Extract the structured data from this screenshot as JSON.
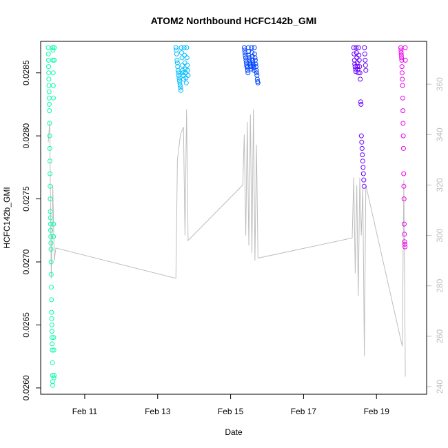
{
  "chart_data": {
    "type": "scatter",
    "title": "ATOM2 Northbound HCFC142b_GMI",
    "xlabel": "Date",
    "ylabel": "HCFC142b_GMI",
    "xlim": [
      "2017-02-09T19:00",
      "2017-02-20T09:00"
    ],
    "ylim": [
      0.02595,
      0.02875
    ],
    "y2lim": [
      237,
      377
    ],
    "x_ticks": [
      "Feb 11",
      "Feb 13",
      "Feb 15",
      "Feb 17",
      "Feb 19"
    ],
    "x_tick_dates": [
      "2017-02-11",
      "2017-02-13",
      "2017-02-15",
      "2017-02-17",
      "2017-02-19"
    ],
    "y_ticks": [
      "0.0260",
      "0.0265",
      "0.0270",
      "0.0275",
      "0.0280",
      "0.0285"
    ],
    "y_tick_values": [
      0.026,
      0.0265,
      0.027,
      0.0275,
      0.028,
      0.0285
    ],
    "y2_ticks": [
      "240",
      "260",
      "280",
      "300",
      "320",
      "340",
      "360"
    ],
    "y2_tick_values": [
      240,
      260,
      280,
      300,
      320,
      340,
      360
    ],
    "grid": false,
    "series": [
      {
        "color": "#00ffaa",
        "start": "2017-02-10T00:00",
        "end": "2017-02-10T04:00",
        "values": [
          0.0287,
          0.02865,
          0.0286,
          0.02855,
          0.0285,
          0.02845,
          0.0284,
          0.02835,
          0.0283,
          0.02825,
          0.0282,
          0.0281,
          0.028,
          0.0279,
          0.0278,
          0.0277,
          0.0276,
          0.0275,
          0.0274,
          0.02735,
          0.0273,
          0.02725,
          0.0272,
          0.02715,
          0.0271,
          0.027,
          0.0269,
          0.0268,
          0.0267,
          0.0266,
          0.02655,
          0.0265,
          0.02645,
          0.0264,
          0.02635,
          0.0263,
          0.0262,
          0.0261,
          0.02605,
          0.02602,
          0.0287,
          0.02868,
          0.0286,
          0.0285,
          0.0284,
          0.0283,
          0.0272,
          0.0273,
          0.0264,
          0.0263,
          0.02608,
          0.0261,
          0.0287,
          0.0286
        ]
      },
      {
        "color": "#00bbff",
        "start": "2017-02-13T12:00",
        "end": "2017-02-13T20:00",
        "values": [
          0.0287,
          0.02868,
          0.02865,
          0.0286,
          0.02858,
          0.02855,
          0.02852,
          0.0285,
          0.02848,
          0.02846,
          0.02844,
          0.02842,
          0.0284,
          0.02838,
          0.02836,
          0.0287,
          0.02866,
          0.02862,
          0.02856,
          0.02852,
          0.0285,
          0.02848,
          0.02845,
          0.0287,
          0.02864,
          0.02858,
          0.02853,
          0.0285,
          0.02846,
          0.02842,
          0.0287,
          0.02862,
          0.02856,
          0.02852,
          0.02848
        ]
      },
      {
        "color": "#0044ff",
        "start": "2017-02-15T09:00",
        "end": "2017-02-15T18:00",
        "values": [
          0.0287,
          0.02868,
          0.02866,
          0.02864,
          0.02862,
          0.0286,
          0.02858,
          0.02856,
          0.02855,
          0.02854,
          0.02852,
          0.0285,
          0.0287,
          0.02867,
          0.02864,
          0.02862,
          0.0286,
          0.02858,
          0.02857,
          0.02856,
          0.02855,
          0.02853,
          0.0287,
          0.02866,
          0.02863,
          0.0286,
          0.02858,
          0.02856,
          0.02854,
          0.02852,
          0.0287,
          0.02865,
          0.02862,
          0.0286,
          0.02857,
          0.02855,
          0.02852,
          0.0285,
          0.02848,
          0.02845,
          0.02843,
          0.02842
        ]
      },
      {
        "color": "#6600ff",
        "start": "2017-02-18T09:00",
        "end": "2017-02-18T17:00",
        "values": [
          0.0287,
          0.02865,
          0.0286,
          0.02857,
          0.02855,
          0.02853,
          0.02851,
          0.0287,
          0.02866,
          0.02862,
          0.02858,
          0.02855,
          0.02853,
          0.0285,
          0.0287,
          0.02864,
          0.0286,
          0.02855,
          0.0285,
          0.02845,
          0.02827,
          0.02825,
          0.028,
          0.02795,
          0.0279,
          0.02785,
          0.0278,
          0.02775,
          0.0277,
          0.02765,
          0.0276,
          0.0287,
          0.02865,
          0.0286,
          0.02856,
          0.02852
        ]
      },
      {
        "color": "#ee00ee",
        "start": "2017-02-19T16:00",
        "end": "2017-02-19T19:00",
        "values": [
          0.0287,
          0.02868,
          0.02866,
          0.02864,
          0.02862,
          0.0286,
          0.02855,
          0.0285,
          0.02845,
          0.0284,
          0.0283,
          0.0282,
          0.0281,
          0.028,
          0.0279,
          0.0277,
          0.0276,
          0.0275,
          0.0273,
          0.02722,
          0.02716,
          0.02714,
          0.02712,
          0.0287,
          0.0286
        ]
      }
    ],
    "secondary_line": {
      "color": "#bebebe",
      "x": [
        "2017-02-10T00:00",
        "2017-02-10T01:00",
        "2017-02-10T02:00",
        "2017-02-10T03:00",
        "2017-02-10T04:00",
        "2017-02-10T05:00",
        "2017-02-13T12:00",
        "2017-02-13T13:00",
        "2017-02-13T15:00",
        "2017-02-13T17:00",
        "2017-02-13T18:00",
        "2017-02-13T19:00",
        "2017-02-13T20:00",
        "2017-02-15T08:00",
        "2017-02-15T09:00",
        "2017-02-15T10:00",
        "2017-02-15T11:00",
        "2017-02-15T12:00",
        "2017-02-15T13:00",
        "2017-02-15T14:00",
        "2017-02-15T15:00",
        "2017-02-15T16:00",
        "2017-02-15T17:00",
        "2017-02-15T18:00",
        "2017-02-18T08:00",
        "2017-02-18T09:00",
        "2017-02-18T10:00",
        "2017-02-18T11:00",
        "2017-02-18T12:00",
        "2017-02-18T13:00",
        "2017-02-18T14:00",
        "2017-02-18T15:00",
        "2017-02-18T16:00",
        "2017-02-18T17:00",
        "2017-02-19T17:00",
        "2017-02-19T18:00",
        "2017-02-19T19:00"
      ],
      "y": [
        337,
        345,
        283,
        320,
        290,
        295,
        283,
        330,
        340,
        343,
        300,
        350,
        298,
        320,
        340,
        300,
        345,
        296,
        348,
        293,
        350,
        290,
        336,
        291,
        299,
        323,
        285,
        320,
        276,
        323,
        300,
        319,
        252,
        320,
        256,
        322,
        244
      ]
    }
  }
}
